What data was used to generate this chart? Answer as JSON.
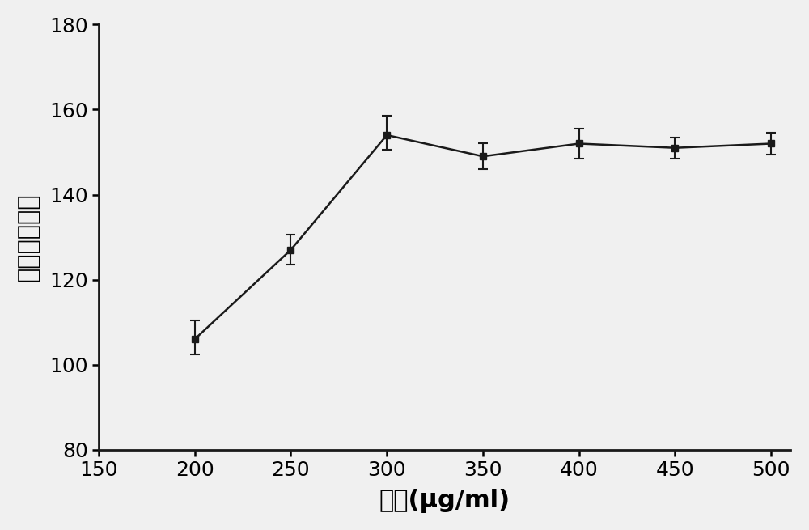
{
  "x": [
    200,
    250,
    300,
    350,
    400,
    450,
    500
  ],
  "y": [
    106,
    127,
    154,
    149,
    152,
    151,
    152
  ],
  "yerr_low": [
    3.5,
    3.5,
    3.5,
    3.0,
    3.5,
    2.5,
    2.5
  ],
  "yerr_high": [
    4.5,
    3.5,
    4.5,
    3.0,
    3.5,
    2.5,
    2.5
  ],
  "xlabel": "浓度(μg/ml)",
  "ylabel": "平均荧光强度",
  "xlim": [
    150,
    510
  ],
  "ylim": [
    80,
    180
  ],
  "xticks": [
    150,
    200,
    250,
    300,
    350,
    400,
    450,
    500
  ],
  "yticks": [
    80,
    100,
    120,
    140,
    160,
    180
  ],
  "line_color": "#1a1a1a",
  "marker": "s",
  "markersize": 6,
  "linewidth": 1.8,
  "background_color": "#f0f0f0",
  "xlabel_fontsize": 22,
  "ylabel_fontsize": 22,
  "tick_fontsize": 18,
  "spine_linewidth": 2.0
}
